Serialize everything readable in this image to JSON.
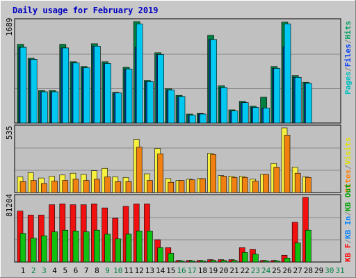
{
  "chart_data": [
    {
      "type": "bar",
      "title": "Daily usage for February 2019",
      "ymax_label": "1689",
      "ymax": 1689,
      "categories": [
        "1",
        "2",
        "3",
        "4",
        "5",
        "6",
        "7",
        "8",
        "9",
        "10",
        "11",
        "12",
        "13",
        "14",
        "15",
        "16",
        "17",
        "18",
        "19",
        "20",
        "21",
        "22",
        "23",
        "24",
        "25",
        "26",
        "27",
        "28",
        "29",
        "30",
        "31"
      ],
      "weekend_days": [
        "2",
        "3",
        "9",
        "10",
        "16",
        "17",
        "23",
        "24",
        "30",
        "31"
      ],
      "legend": [
        "Pages",
        "Files",
        "Hits"
      ],
      "legend_colors": [
        "#00c0c0",
        "#0040ff",
        "#00a060"
      ],
      "series": [
        {
          "name": "Hits",
          "color": "#008040",
          "values": [
            1310,
            1080,
            540,
            540,
            1310,
            1020,
            940,
            1320,
            1020,
            510,
            930,
            1689,
            710,
            1170,
            570,
            460,
            150,
            160,
            1460,
            620,
            220,
            360,
            280,
            430,
            940,
            1680,
            790,
            680,
            null,
            null,
            null
          ]
        },
        {
          "name": "Files",
          "color": "#0040a0",
          "values": [
            1260,
            1060,
            520,
            520,
            1250,
            1000,
            920,
            1280,
            990,
            500,
            900,
            1260,
            690,
            1140,
            550,
            440,
            130,
            150,
            1390,
            590,
            200,
            340,
            260,
            250,
            910,
            1270,
            760,
            660,
            null,
            null,
            null
          ]
        },
        {
          "name": "Pages",
          "color": "#00c8f0",
          "values": [
            1260,
            1060,
            520,
            520,
            1250,
            1000,
            920,
            1280,
            990,
            500,
            900,
            1650,
            690,
            1140,
            550,
            440,
            130,
            150,
            1390,
            590,
            200,
            340,
            260,
            250,
            910,
            1650,
            760,
            660,
            null,
            null,
            null
          ]
        }
      ]
    },
    {
      "type": "bar",
      "ymax_label": "535",
      "ymax": 535,
      "categories": [
        "1",
        "2",
        "3",
        "4",
        "5",
        "6",
        "7",
        "8",
        "9",
        "10",
        "11",
        "12",
        "13",
        "14",
        "15",
        "16",
        "17",
        "18",
        "19",
        "20",
        "21",
        "22",
        "23",
        "24",
        "25",
        "26",
        "27",
        "28",
        "29",
        "30",
        "31"
      ],
      "legend": [
        "Sites",
        "/",
        "Visits"
      ],
      "legend_colors": [
        "#ff8000",
        "#808080",
        "#e0e000"
      ],
      "series": [
        {
          "name": "Visits",
          "color": "#f8f040",
          "values": [
            130,
            165,
            120,
            135,
            145,
            160,
            150,
            180,
            200,
            130,
            125,
            440,
            155,
            365,
            115,
            100,
            110,
            115,
            325,
            140,
            135,
            135,
            110,
            150,
            240,
            535,
            210,
            130,
            null,
            null,
            null
          ]
        },
        {
          "name": "Sites",
          "color": "#f08010",
          "values": [
            90,
            100,
            75,
            95,
            100,
            110,
            100,
            110,
            130,
            90,
            90,
            375,
            100,
            320,
            85,
            100,
            105,
            115,
            315,
            135,
            125,
            125,
            95,
            150,
            210,
            475,
            160,
            125,
            null,
            null,
            null
          ]
        }
      ]
    },
    {
      "type": "bar",
      "ymax_label": "81204",
      "ymax": 81204,
      "categories": [
        "1",
        "2",
        "3",
        "4",
        "5",
        "6",
        "7",
        "8",
        "9",
        "10",
        "11",
        "12",
        "13",
        "14",
        "15",
        "16",
        "17",
        "18",
        "19",
        "20",
        "21",
        "22",
        "23",
        "24",
        "25",
        "26",
        "27",
        "28",
        "29",
        "30",
        "31"
      ],
      "legend": [
        "KB F",
        "/",
        "KB In",
        "/",
        "KB Out"
      ],
      "legend_colors": [
        "#ff0000",
        "#808080",
        "#0080ff",
        "#808080",
        "#00a000"
      ],
      "series": [
        {
          "name": "KB F",
          "color": "#f01010",
          "values": [
            64000,
            59000,
            59000,
            72000,
            73000,
            72000,
            72000,
            73000,
            68000,
            55000,
            70000,
            73000,
            73000,
            28000,
            18000,
            2000,
            2000,
            2000,
            3000,
            3000,
            3000,
            18000,
            16000,
            2000,
            2000,
            8500,
            50000,
            81204,
            null,
            null,
            null
          ]
        },
        {
          "name": "KB Out",
          "color": "#10c010",
          "values": [
            36000,
            30000,
            33000,
            38000,
            40000,
            39000,
            38000,
            40000,
            35000,
            29000,
            35000,
            39000,
            39000,
            18000,
            11000,
            1500,
            1500,
            1500,
            2000,
            2000,
            2000,
            12000,
            10000,
            1500,
            1500,
            5000,
            24000,
            40000,
            null,
            null,
            null
          ]
        }
      ]
    }
  ]
}
